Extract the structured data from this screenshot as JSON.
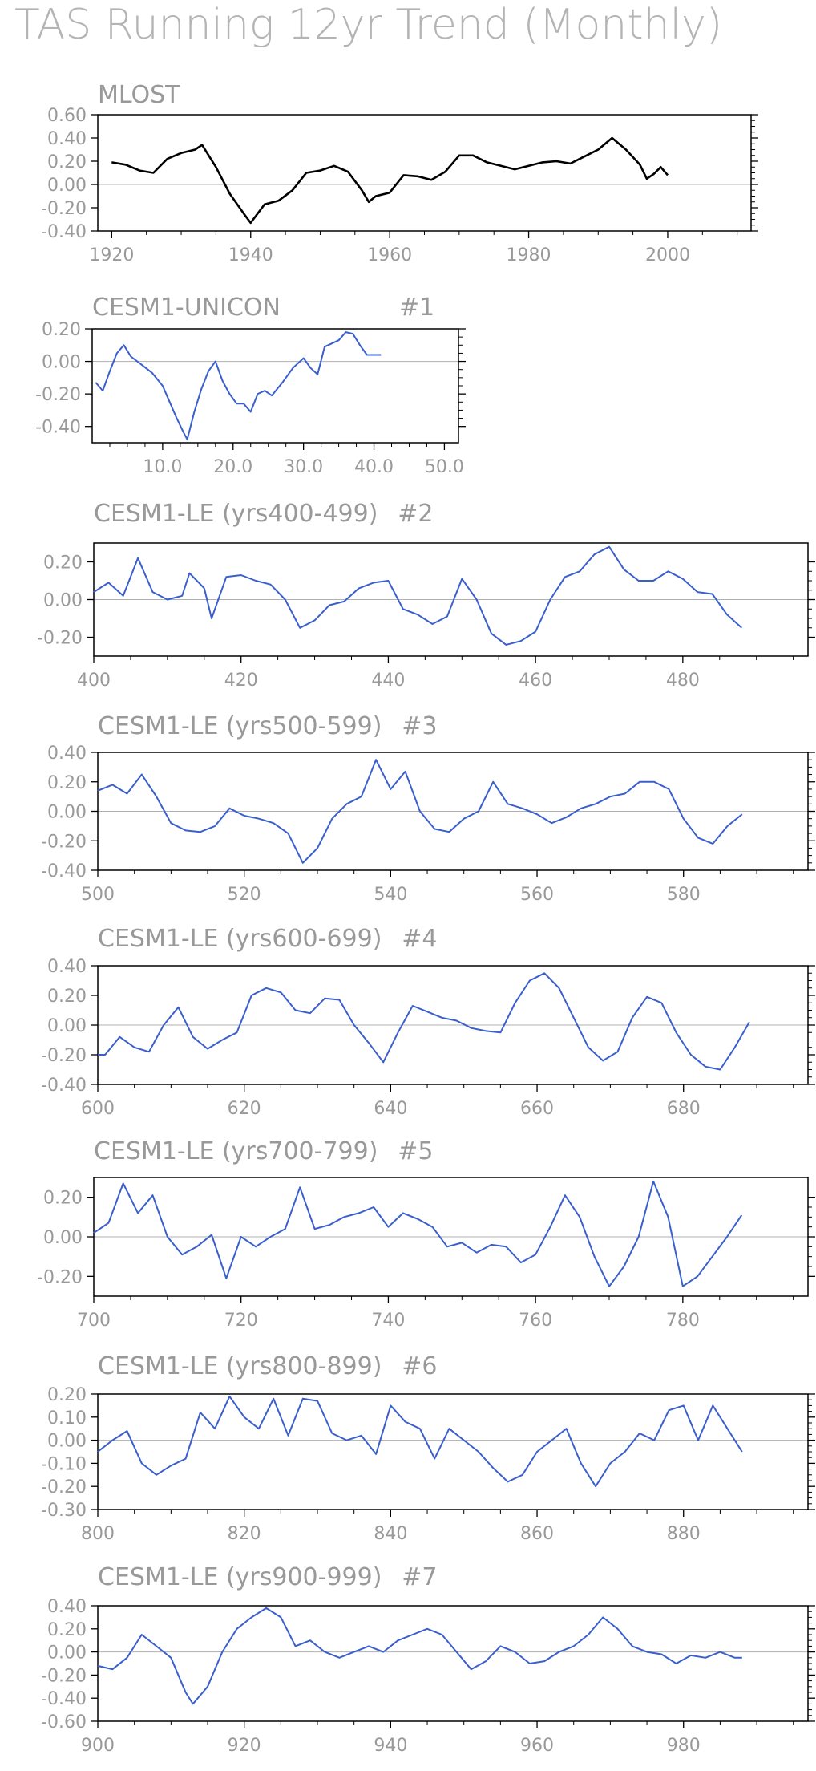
{
  "title": "TAS Running 12yr Trend (Monthly)",
  "chart_data": [
    {
      "type": "line",
      "title": "MLOST",
      "color": "#000000",
      "xlim": [
        1918,
        2012
      ],
      "ylim": [
        -0.4,
        0.6
      ],
      "x_ticks": [
        1920,
        1940,
        1960,
        1980,
        2000
      ],
      "x_tick_labels": [
        "1920",
        "1940",
        "1960",
        "1980",
        "2000"
      ],
      "y_ticks": [
        -0.4,
        -0.2,
        0.0,
        0.2,
        0.4,
        0.6
      ],
      "y_tick_labels": [
        "-0.40",
        "-0.20",
        "0.00",
        "0.20",
        "0.40",
        "0.60"
      ],
      "x": [
        1920,
        1922,
        1924,
        1926,
        1928,
        1930,
        1932,
        1933,
        1935,
        1937,
        1939,
        1940,
        1942,
        1944,
        1946,
        1948,
        1950,
        1952,
        1954,
        1956,
        1957,
        1958,
        1960,
        1962,
        1964,
        1966,
        1968,
        1970,
        1972,
        1974,
        1976,
        1978,
        1980,
        1982,
        1984,
        1986,
        1988,
        1990,
        1992,
        1994,
        1996,
        1997,
        1998,
        1999,
        2000
      ],
      "y": [
        0.19,
        0.17,
        0.12,
        0.1,
        0.22,
        0.27,
        0.3,
        0.34,
        0.15,
        -0.08,
        -0.25,
        -0.33,
        -0.17,
        -0.14,
        -0.05,
        0.1,
        0.12,
        0.16,
        0.11,
        -0.05,
        -0.15,
        -0.1,
        -0.07,
        0.08,
        0.07,
        0.04,
        0.11,
        0.25,
        0.25,
        0.19,
        0.16,
        0.13,
        0.16,
        0.19,
        0.2,
        0.18,
        0.24,
        0.3,
        0.4,
        0.3,
        0.17,
        0.05,
        0.09,
        0.15,
        0.08
      ]
    },
    {
      "type": "line",
      "title": "CESM1-UNICON",
      "run": "#1",
      "color": "#3a5fcd",
      "xlim": [
        0,
        52
      ],
      "ylim": [
        -0.5,
        0.2
      ],
      "x_ticks": [
        10,
        20,
        30,
        40,
        50
      ],
      "x_tick_labels": [
        "10.0",
        "20.0",
        "30.0",
        "40.0",
        "50.0"
      ],
      "y_ticks": [
        -0.4,
        -0.2,
        0.0,
        0.2
      ],
      "y_tick_labels": [
        "-0.40",
        "-0.20",
        "0.00",
        "0.20"
      ],
      "x": [
        0.5,
        1.5,
        2.5,
        3.5,
        4.5,
        5.5,
        7,
        8.5,
        10,
        11,
        12,
        13,
        13.5,
        14.5,
        15.5,
        16.5,
        17.5,
        18.5,
        19.5,
        20.5,
        21.5,
        22.5,
        23.5,
        24.5,
        25.5,
        27,
        28.5,
        30,
        31,
        32,
        33,
        34,
        35,
        36,
        37,
        38,
        39,
        40,
        41
      ],
      "y": [
        -0.13,
        -0.18,
        -0.06,
        0.05,
        0.1,
        0.03,
        -0.02,
        -0.07,
        -0.15,
        -0.25,
        -0.35,
        -0.44,
        -0.48,
        -0.31,
        -0.17,
        -0.06,
        0.0,
        -0.12,
        -0.2,
        -0.26,
        -0.26,
        -0.31,
        -0.2,
        -0.18,
        -0.21,
        -0.13,
        -0.04,
        0.02,
        -0.04,
        -0.08,
        0.09,
        0.11,
        0.13,
        0.18,
        0.17,
        0.1,
        0.04,
        0.04,
        0.04
      ]
    },
    {
      "type": "line",
      "title": "CESM1-LE (yrs400-499)",
      "run": "#2",
      "color": "#3a5fcd",
      "xlim": [
        400,
        497
      ],
      "ylim": [
        -0.3,
        0.3
      ],
      "x_ticks": [
        400,
        420,
        440,
        460,
        480
      ],
      "x_tick_labels": [
        "400",
        "420",
        "440",
        "460",
        "480"
      ],
      "y_ticks": [
        -0.2,
        0.0,
        0.2
      ],
      "y_tick_labels": [
        "-0.20",
        "0.00",
        "0.20"
      ],
      "x": [
        400,
        402,
        404,
        406,
        408,
        410,
        412,
        413,
        415,
        416,
        418,
        420,
        422,
        424,
        426,
        428,
        430,
        432,
        434,
        436,
        438,
        440,
        442,
        444,
        446,
        448,
        450,
        452,
        454,
        456,
        458,
        460,
        462,
        464,
        466,
        468,
        470,
        472,
        474,
        476,
        478,
        480,
        482,
        484,
        486,
        488
      ],
      "y": [
        0.04,
        0.09,
        0.02,
        0.22,
        0.04,
        0.0,
        0.02,
        0.14,
        0.06,
        -0.1,
        0.12,
        0.13,
        0.1,
        0.08,
        0.0,
        -0.15,
        -0.11,
        -0.03,
        -0.01,
        0.06,
        0.09,
        0.1,
        -0.05,
        -0.08,
        -0.13,
        -0.09,
        0.11,
        0.0,
        -0.18,
        -0.24,
        -0.22,
        -0.17,
        0.0,
        0.12,
        0.15,
        0.24,
        0.28,
        0.16,
        0.1,
        0.1,
        0.15,
        0.11,
        0.04,
        0.03,
        -0.08,
        -0.15
      ]
    },
    {
      "type": "line",
      "title": "CESM1-LE (yrs500-599)",
      "run": "#3",
      "color": "#3a5fcd",
      "xlim": [
        500,
        597
      ],
      "ylim": [
        -0.4,
        0.4
      ],
      "x_ticks": [
        500,
        520,
        540,
        560,
        580
      ],
      "x_tick_labels": [
        "500",
        "520",
        "540",
        "560",
        "580"
      ],
      "y_ticks": [
        -0.4,
        -0.2,
        0.0,
        0.2,
        0.4
      ],
      "y_tick_labels": [
        "-0.40",
        "-0.20",
        "0.00",
        "0.20",
        "0.40"
      ],
      "x": [
        500,
        502,
        504,
        506,
        508,
        510,
        512,
        514,
        516,
        518,
        520,
        522,
        524,
        526,
        528,
        530,
        532,
        534,
        536,
        538,
        540,
        542,
        544,
        546,
        548,
        550,
        552,
        554,
        556,
        558,
        560,
        562,
        564,
        566,
        568,
        570,
        572,
        574,
        576,
        578,
        580,
        582,
        584,
        586,
        588
      ],
      "y": [
        0.14,
        0.18,
        0.12,
        0.25,
        0.1,
        -0.08,
        -0.13,
        -0.14,
        -0.1,
        0.02,
        -0.03,
        -0.05,
        -0.08,
        -0.15,
        -0.35,
        -0.25,
        -0.05,
        0.05,
        0.1,
        0.35,
        0.15,
        0.27,
        0.0,
        -0.12,
        -0.14,
        -0.05,
        0.0,
        0.2,
        0.05,
        0.02,
        -0.02,
        -0.08,
        -0.04,
        0.02,
        0.05,
        0.1,
        0.12,
        0.2,
        0.2,
        0.15,
        -0.05,
        -0.18,
        -0.22,
        -0.1,
        -0.02
      ]
    },
    {
      "type": "line",
      "title": "CESM1-LE (yrs600-699)",
      "run": "#4",
      "color": "#3a5fcd",
      "xlim": [
        600,
        697
      ],
      "ylim": [
        -0.4,
        0.4
      ],
      "x_ticks": [
        600,
        620,
        640,
        660,
        680
      ],
      "x_tick_labels": [
        "600",
        "620",
        "640",
        "660",
        "680"
      ],
      "y_ticks": [
        -0.4,
        -0.2,
        0.0,
        0.2,
        0.4
      ],
      "y_tick_labels": [
        "-0.40",
        "-0.20",
        "0.00",
        "0.20",
        "0.40"
      ],
      "x": [
        600,
        601,
        603,
        605,
        607,
        609,
        611,
        613,
        615,
        617,
        619,
        621,
        623,
        625,
        627,
        629,
        631,
        633,
        635,
        637,
        639,
        641,
        643,
        645,
        647,
        649,
        651,
        653,
        655,
        657,
        659,
        661,
        663,
        665,
        667,
        669,
        671,
        673,
        675,
        677,
        679,
        681,
        683,
        685,
        687,
        689
      ],
      "y": [
        -0.2,
        -0.2,
        -0.08,
        -0.15,
        -0.18,
        0.0,
        0.12,
        -0.08,
        -0.16,
        -0.1,
        -0.05,
        0.2,
        0.25,
        0.22,
        0.1,
        0.08,
        0.18,
        0.17,
        0.0,
        -0.12,
        -0.25,
        -0.05,
        0.13,
        0.09,
        0.05,
        0.03,
        -0.02,
        -0.04,
        -0.05,
        0.15,
        0.3,
        0.35,
        0.25,
        0.05,
        -0.15,
        -0.24,
        -0.18,
        0.05,
        0.19,
        0.15,
        -0.05,
        -0.2,
        -0.28,
        -0.3,
        -0.15,
        0.02
      ]
    },
    {
      "type": "line",
      "title": "CESM1-LE (yrs700-799)",
      "run": "#5",
      "color": "#3a5fcd",
      "xlim": [
        700,
        797
      ],
      "ylim": [
        -0.3,
        0.3
      ],
      "x_ticks": [
        700,
        720,
        740,
        760,
        780
      ],
      "x_tick_labels": [
        "700",
        "720",
        "740",
        "760",
        "780"
      ],
      "y_ticks": [
        -0.2,
        0.0,
        0.2
      ],
      "y_tick_labels": [
        "-0.20",
        "0.00",
        "0.20"
      ],
      "x": [
        700,
        702,
        704,
        706,
        708,
        710,
        712,
        714,
        716,
        718,
        720,
        722,
        724,
        726,
        728,
        730,
        732,
        734,
        736,
        738,
        740,
        742,
        744,
        746,
        748,
        750,
        752,
        754,
        756,
        758,
        760,
        762,
        764,
        766,
        768,
        770,
        772,
        774,
        776,
        778,
        780,
        782,
        784,
        786,
        788
      ],
      "y": [
        0.02,
        0.07,
        0.27,
        0.12,
        0.21,
        0.0,
        -0.09,
        -0.05,
        0.01,
        -0.21,
        0.0,
        -0.05,
        0.0,
        0.04,
        0.25,
        0.04,
        0.06,
        0.1,
        0.12,
        0.15,
        0.05,
        0.12,
        0.09,
        0.05,
        -0.05,
        -0.03,
        -0.08,
        -0.04,
        -0.05,
        -0.13,
        -0.09,
        0.05,
        0.21,
        0.1,
        -0.1,
        -0.25,
        -0.15,
        0.0,
        0.28,
        0.1,
        -0.25,
        -0.2,
        -0.1,
        0.0,
        0.11
      ]
    },
    {
      "type": "line",
      "title": "CESM1-LE (yrs800-899)",
      "run": "#6",
      "color": "#3a5fcd",
      "xlim": [
        800,
        897
      ],
      "ylim": [
        -0.3,
        0.2
      ],
      "x_ticks": [
        800,
        820,
        840,
        860,
        880
      ],
      "x_tick_labels": [
        "800",
        "820",
        "840",
        "860",
        "880"
      ],
      "y_ticks": [
        -0.3,
        -0.2,
        -0.1,
        0.0,
        0.1,
        0.2
      ],
      "y_tick_labels": [
        "-0.30",
        "-0.20",
        "-0.10",
        "0.00",
        "0.10",
        "0.20"
      ],
      "x": [
        800,
        802,
        804,
        806,
        808,
        810,
        812,
        814,
        816,
        818,
        820,
        822,
        824,
        826,
        828,
        830,
        832,
        834,
        836,
        838,
        840,
        842,
        844,
        846,
        848,
        850,
        852,
        854,
        856,
        858,
        860,
        862,
        864,
        866,
        868,
        870,
        872,
        874,
        876,
        878,
        880,
        882,
        884,
        886,
        888
      ],
      "y": [
        -0.05,
        0.0,
        0.04,
        -0.1,
        -0.15,
        -0.11,
        -0.08,
        0.12,
        0.05,
        0.19,
        0.1,
        0.05,
        0.18,
        0.02,
        0.18,
        0.17,
        0.03,
        0.0,
        0.02,
        -0.06,
        0.15,
        0.08,
        0.05,
        -0.08,
        0.05,
        0.0,
        -0.05,
        -0.12,
        -0.18,
        -0.15,
        -0.05,
        0.0,
        0.05,
        -0.1,
        -0.2,
        -0.1,
        -0.05,
        0.03,
        0.0,
        0.13,
        0.15,
        0.0,
        0.15,
        0.05,
        -0.05
      ]
    },
    {
      "type": "line",
      "title": "CESM1-LE (yrs900-999)",
      "run": "#7",
      "color": "#3a5fcd",
      "xlim": [
        900,
        997
      ],
      "ylim": [
        -0.6,
        0.4
      ],
      "x_ticks": [
        900,
        920,
        940,
        960,
        980
      ],
      "x_tick_labels": [
        "900",
        "920",
        "940",
        "960",
        "980"
      ],
      "y_ticks": [
        -0.6,
        -0.4,
        -0.2,
        0.0,
        0.2,
        0.4
      ],
      "y_tick_labels": [
        "-0.60",
        "-0.40",
        "-0.20",
        "0.00",
        "0.20",
        "0.40"
      ],
      "x": [
        900,
        902,
        904,
        906,
        908,
        910,
        912,
        913,
        915,
        917,
        919,
        921,
        923,
        925,
        927,
        929,
        931,
        933,
        935,
        937,
        939,
        941,
        943,
        945,
        947,
        949,
        951,
        953,
        955,
        957,
        959,
        961,
        963,
        965,
        967,
        969,
        971,
        973,
        975,
        977,
        979,
        981,
        983,
        985,
        987,
        988
      ],
      "y": [
        -0.12,
        -0.15,
        -0.05,
        0.15,
        0.05,
        -0.05,
        -0.35,
        -0.45,
        -0.3,
        0.0,
        0.2,
        0.3,
        0.38,
        0.3,
        0.05,
        0.1,
        0.0,
        -0.05,
        0.0,
        0.05,
        0.0,
        0.1,
        0.15,
        0.2,
        0.15,
        0.0,
        -0.15,
        -0.08,
        0.05,
        0.0,
        -0.1,
        -0.08,
        0.0,
        0.05,
        0.15,
        0.3,
        0.2,
        0.05,
        0.0,
        -0.02,
        -0.1,
        -0.03,
        -0.05,
        0.0,
        -0.05,
        -0.05
      ]
    }
  ]
}
